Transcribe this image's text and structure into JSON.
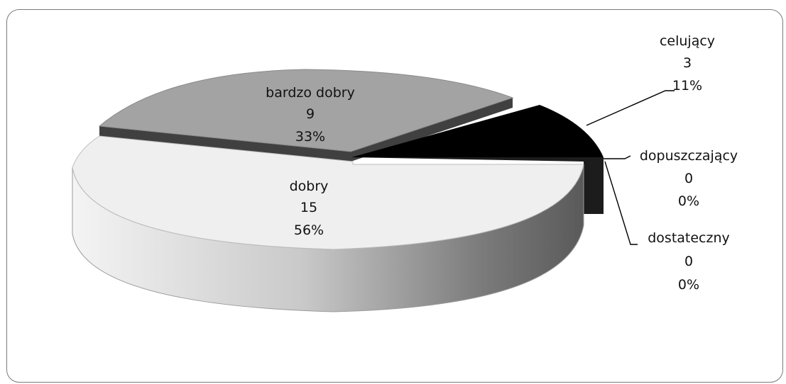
{
  "chart_data": {
    "type": "pie",
    "style": "3d-exploded",
    "categories": [
      "celujący",
      "dopuszczający",
      "dostateczny",
      "dobry",
      "bardzo dobry"
    ],
    "values": [
      3,
      0,
      0,
      15,
      9
    ],
    "percent_labels": [
      "11%",
      "0%",
      "0%",
      "56%",
      "33%"
    ],
    "value_labels": [
      "3",
      "0",
      "0",
      "15",
      "9"
    ],
    "colors": [
      "#000000",
      "#222222",
      "#333333",
      "#efefef",
      "#a3a3a3"
    ],
    "title": "",
    "legend": "none"
  }
}
